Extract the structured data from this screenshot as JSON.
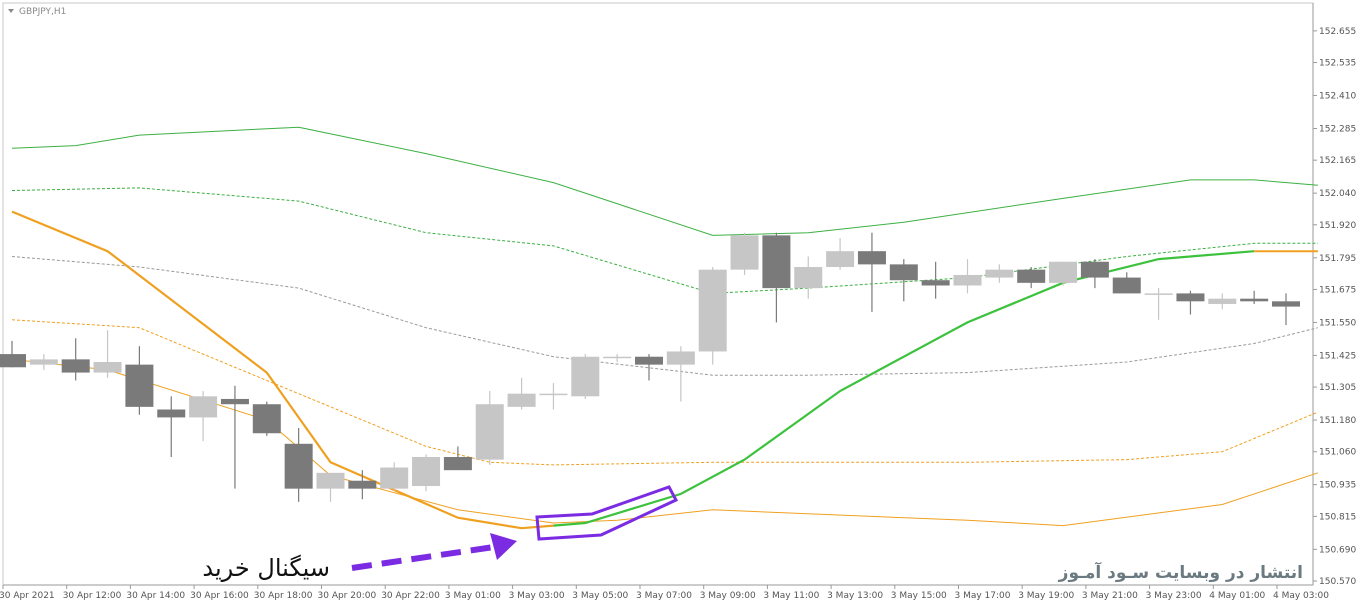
{
  "window": {
    "symbol_label": "GBPJPY,H1"
  },
  "annotations": {
    "signal_text": "سیگنال خرید",
    "watermark": "انتشار در وبسایت سـود آمـوز"
  },
  "colors": {
    "bullish_candle": "#c6c6c6",
    "bearish_candle": "#7a7a7a",
    "green_band": "#3cb043",
    "orange_band": "#f0a020",
    "gray_mid": "#9a9a9a",
    "signal_line": "#3cc23c",
    "annotation": "#7b2be2"
  },
  "chart_data": {
    "type": "candlestick",
    "ylim": [
      150.57,
      152.7
    ],
    "y_ticks": [
      "152.655",
      "152.535",
      "152.410",
      "152.285",
      "152.165",
      "152.040",
      "151.920",
      "151.795",
      "151.675",
      "151.550",
      "151.425",
      "151.305",
      "151.180",
      "151.060",
      "150.935",
      "150.815",
      "150.690",
      "150.570"
    ],
    "x_ticks": [
      "30 Apr 2021",
      "30 Apr 12:00",
      "30 Apr 14:00",
      "30 Apr 16:00",
      "30 Apr 18:00",
      "30 Apr 20:00",
      "30 Apr 22:00",
      "3 May 01:00",
      "3 May 03:00",
      "3 May 05:00",
      "3 May 07:00",
      "3 May 09:00",
      "3 May 11:00",
      "3 May 13:00",
      "3 May 15:00",
      "3 May 17:00",
      "3 May 19:00",
      "3 May 21:00",
      "3 May 23:00",
      "4 May 01:00",
      "4 May 03:00"
    ],
    "candles": [
      {
        "o": 151.43,
        "h": 151.48,
        "l": 151.38,
        "c": 151.38
      },
      {
        "o": 151.39,
        "h": 151.43,
        "l": 151.37,
        "c": 151.41
      },
      {
        "o": 151.41,
        "h": 151.49,
        "l": 151.33,
        "c": 151.36
      },
      {
        "o": 151.36,
        "h": 151.52,
        "l": 151.34,
        "c": 151.4
      },
      {
        "o": 151.39,
        "h": 151.46,
        "l": 151.2,
        "c": 151.23
      },
      {
        "o": 151.22,
        "h": 151.27,
        "l": 151.04,
        "c": 151.19
      },
      {
        "o": 151.19,
        "h": 151.29,
        "l": 151.1,
        "c": 151.27
      },
      {
        "o": 151.26,
        "h": 151.31,
        "l": 150.92,
        "c": 151.24
      },
      {
        "o": 151.24,
        "h": 151.25,
        "l": 151.12,
        "c": 151.13
      },
      {
        "o": 151.09,
        "h": 151.15,
        "l": 150.87,
        "c": 150.92
      },
      {
        "o": 150.92,
        "h": 150.97,
        "l": 150.87,
        "c": 150.98
      },
      {
        "o": 150.95,
        "h": 150.99,
        "l": 150.88,
        "c": 150.92
      },
      {
        "o": 150.92,
        "h": 151.02,
        "l": 150.91,
        "c": 151.0
      },
      {
        "o": 150.93,
        "h": 151.05,
        "l": 150.91,
        "c": 151.04
      },
      {
        "o": 151.04,
        "h": 151.08,
        "l": 151.01,
        "c": 150.99
      },
      {
        "o": 151.03,
        "h": 151.29,
        "l": 151.01,
        "c": 151.24
      },
      {
        "o": 151.23,
        "h": 151.34,
        "l": 151.22,
        "c": 151.28
      },
      {
        "o": 151.28,
        "h": 151.32,
        "l": 151.22,
        "c": 151.28
      },
      {
        "o": 151.27,
        "h": 151.43,
        "l": 151.26,
        "c": 151.42
      },
      {
        "o": 151.42,
        "h": 151.43,
        "l": 151.4,
        "c": 151.42
      },
      {
        "o": 151.42,
        "h": 151.43,
        "l": 151.33,
        "c": 151.39
      },
      {
        "o": 151.39,
        "h": 151.46,
        "l": 151.25,
        "c": 151.44
      },
      {
        "o": 151.44,
        "h": 151.76,
        "l": 151.39,
        "c": 151.75
      },
      {
        "o": 151.75,
        "h": 151.89,
        "l": 151.73,
        "c": 151.88
      },
      {
        "o": 151.88,
        "h": 151.89,
        "l": 151.55,
        "c": 151.68
      },
      {
        "o": 151.68,
        "h": 151.8,
        "l": 151.64,
        "c": 151.76
      },
      {
        "o": 151.76,
        "h": 151.87,
        "l": 151.75,
        "c": 151.82
      },
      {
        "o": 151.82,
        "h": 151.89,
        "l": 151.59,
        "c": 151.77
      },
      {
        "o": 151.77,
        "h": 151.79,
        "l": 151.63,
        "c": 151.71
      },
      {
        "o": 151.71,
        "h": 151.78,
        "l": 151.64,
        "c": 151.69
      },
      {
        "o": 151.69,
        "h": 151.79,
        "l": 151.66,
        "c": 151.73
      },
      {
        "o": 151.72,
        "h": 151.77,
        "l": 151.7,
        "c": 151.75
      },
      {
        "o": 151.75,
        "h": 151.76,
        "l": 151.68,
        "c": 151.7
      },
      {
        "o": 151.7,
        "h": 151.78,
        "l": 151.69,
        "c": 151.78
      },
      {
        "o": 151.78,
        "h": 151.79,
        "l": 151.68,
        "c": 151.72
      },
      {
        "o": 151.72,
        "h": 151.74,
        "l": 151.66,
        "c": 151.66
      },
      {
        "o": 151.66,
        "h": 151.68,
        "l": 151.56,
        "c": 151.66
      },
      {
        "o": 151.66,
        "h": 151.67,
        "l": 151.58,
        "c": 151.63
      },
      {
        "o": 151.62,
        "h": 151.66,
        "l": 151.6,
        "c": 151.64
      },
      {
        "o": 151.64,
        "h": 151.67,
        "l": 151.62,
        "c": 151.63
      },
      {
        "o": 151.63,
        "h": 151.66,
        "l": 151.54,
        "c": 151.61
      }
    ],
    "lines": [
      {
        "name": "green-upper",
        "style": "solid",
        "points": [
          [
            0,
            152.21
          ],
          [
            2,
            152.22
          ],
          [
            4,
            152.26
          ],
          [
            9,
            152.29
          ],
          [
            13,
            152.19
          ],
          [
            17,
            152.08
          ],
          [
            22,
            151.88
          ],
          [
            25,
            151.89
          ],
          [
            28,
            151.93
          ],
          [
            33,
            152.02
          ],
          [
            37,
            152.09
          ],
          [
            39,
            152.09
          ],
          [
            41,
            152.07
          ]
        ]
      },
      {
        "name": "green-mid",
        "style": "dashed",
        "points": [
          [
            0,
            152.05
          ],
          [
            4,
            152.06
          ],
          [
            9,
            152.01
          ],
          [
            13,
            151.89
          ],
          [
            17,
            151.84
          ],
          [
            22,
            151.66
          ],
          [
            25,
            151.68
          ],
          [
            30,
            151.72
          ],
          [
            35,
            151.8
          ],
          [
            39,
            151.85
          ],
          [
            41,
            151.85
          ]
        ]
      },
      {
        "name": "gray-mid",
        "style": "dashed",
        "points": [
          [
            0,
            151.8
          ],
          [
            4,
            151.76
          ],
          [
            9,
            151.68
          ],
          [
            13,
            151.53
          ],
          [
            17,
            151.42
          ],
          [
            22,
            151.35
          ],
          [
            25,
            151.35
          ],
          [
            30,
            151.36
          ],
          [
            35,
            151.4
          ],
          [
            39,
            151.47
          ],
          [
            41,
            151.53
          ]
        ]
      },
      {
        "name": "orange-upper",
        "style": "dashed",
        "points": [
          [
            0,
            151.56
          ],
          [
            4,
            151.53
          ],
          [
            9,
            151.28
          ],
          [
            13,
            151.08
          ],
          [
            15,
            151.02
          ],
          [
            17,
            151.01
          ],
          [
            22,
            151.02
          ],
          [
            30,
            151.02
          ],
          [
            35,
            151.03
          ],
          [
            38,
            151.06
          ],
          [
            41,
            151.21
          ]
        ]
      },
      {
        "name": "orange-lower",
        "style": "solid",
        "points": [
          [
            0,
            151.41
          ],
          [
            3,
            151.37
          ],
          [
            8,
            151.18
          ],
          [
            10,
            150.97
          ],
          [
            14,
            150.84
          ],
          [
            17,
            150.79
          ],
          [
            19,
            150.8
          ],
          [
            22,
            150.84
          ],
          [
            30,
            150.8
          ],
          [
            33,
            150.78
          ],
          [
            38,
            150.86
          ],
          [
            41,
            150.98
          ]
        ]
      },
      {
        "name": "orange-signal",
        "style": "solid",
        "points": [
          [
            0,
            151.97
          ],
          [
            3,
            151.82
          ],
          [
            8,
            151.36
          ],
          [
            10,
            151.02
          ],
          [
            14,
            150.81
          ],
          [
            16,
            150.77
          ],
          [
            17,
            150.78
          ]
        ]
      },
      {
        "name": "green-signal",
        "style": "solid",
        "points": [
          [
            17,
            150.78
          ],
          [
            18,
            150.79
          ],
          [
            21,
            150.9
          ],
          [
            23,
            151.03
          ],
          [
            26,
            151.29
          ],
          [
            30,
            151.55
          ],
          [
            33,
            151.7
          ],
          [
            36,
            151.79
          ],
          [
            39,
            151.82
          ]
        ]
      },
      {
        "name": "orange-signal-tail",
        "style": "solid",
        "points": [
          [
            39,
            151.82
          ],
          [
            41,
            151.82
          ]
        ]
      }
    ]
  }
}
